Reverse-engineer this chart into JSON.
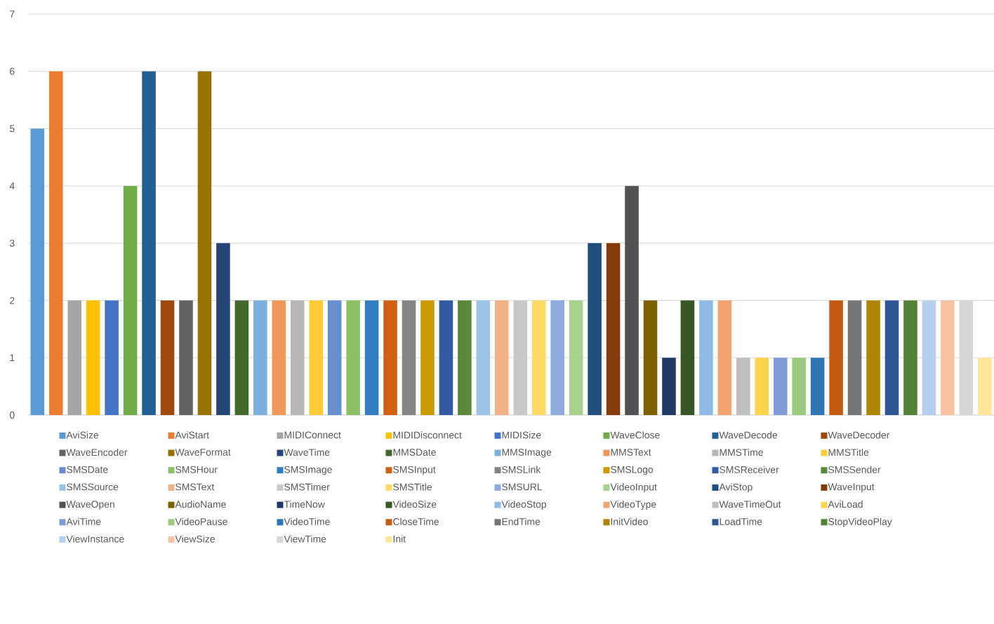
{
  "chart_data": {
    "type": "bar",
    "categories": [
      null
    ],
    "ylim": [
      0,
      7
    ],
    "yticks": [
      0,
      1,
      2,
      3,
      4,
      5,
      6,
      7
    ],
    "grid": "y",
    "legend": "bottom",
    "series": [
      {
        "name": "AviSize",
        "color": "#5b9bd5",
        "values": [
          5
        ]
      },
      {
        "name": "AviStart",
        "color": "#ed7d31",
        "values": [
          6
        ]
      },
      {
        "name": "MIDIConnect",
        "color": "#a5a5a5",
        "values": [
          2
        ]
      },
      {
        "name": "MIDIDisconnect",
        "color": "#ffc000",
        "values": [
          2
        ]
      },
      {
        "name": "MIDISize",
        "color": "#4472c4",
        "values": [
          2
        ]
      },
      {
        "name": "WaveClose",
        "color": "#70ad47",
        "values": [
          4
        ]
      },
      {
        "name": "WaveDecode",
        "color": "#255e91",
        "values": [
          6
        ]
      },
      {
        "name": "WaveDecoder",
        "color": "#9e480e",
        "values": [
          2
        ]
      },
      {
        "name": "WaveEncoder",
        "color": "#636363",
        "values": [
          2
        ]
      },
      {
        "name": "WaveFormat",
        "color": "#997300",
        "values": [
          6
        ]
      },
      {
        "name": "WaveTime",
        "color": "#264478",
        "values": [
          3
        ]
      },
      {
        "name": "MMSDate",
        "color": "#43682b",
        "values": [
          2
        ]
      },
      {
        "name": "MMSImage",
        "color": "#7cafdd",
        "values": [
          2
        ]
      },
      {
        "name": "MMSText",
        "color": "#f1975a",
        "values": [
          2
        ]
      },
      {
        "name": "MMSTime",
        "color": "#b7b7b7",
        "values": [
          2
        ]
      },
      {
        "name": "MMSTitle",
        "color": "#ffcd33",
        "values": [
          2
        ]
      },
      {
        "name": "SMSDate",
        "color": "#698ed0",
        "values": [
          2
        ]
      },
      {
        "name": "SMSHour",
        "color": "#8cc168",
        "values": [
          2
        ]
      },
      {
        "name": "SMSImage",
        "color": "#327dc2",
        "values": [
          2
        ]
      },
      {
        "name": "SMSInput",
        "color": "#d26012",
        "values": [
          2
        ]
      },
      {
        "name": "SMSLink",
        "color": "#848484",
        "values": [
          2
        ]
      },
      {
        "name": "SMSLogo",
        "color": "#cc9a00",
        "values": [
          2
        ]
      },
      {
        "name": "SMSReceiver",
        "color": "#335aa1",
        "values": [
          2
        ]
      },
      {
        "name": "SMSSender",
        "color": "#5a8a39",
        "values": [
          2
        ]
      },
      {
        "name": "SMSSource",
        "color": "#9dc3e6",
        "values": [
          2
        ]
      },
      {
        "name": "SMSText",
        "color": "#f4b183",
        "values": [
          2
        ]
      },
      {
        "name": "SMSTimer",
        "color": "#c9c9c9",
        "values": [
          2
        ]
      },
      {
        "name": "SMSTitle",
        "color": "#ffd966",
        "values": [
          2
        ]
      },
      {
        "name": "SMSURL",
        "color": "#8faadc",
        "values": [
          2
        ]
      },
      {
        "name": "VideoInput",
        "color": "#a9d18e",
        "values": [
          2
        ]
      },
      {
        "name": "AviStop",
        "color": "#1f4e79",
        "values": [
          3
        ]
      },
      {
        "name": "WaveInput",
        "color": "#843c0c",
        "values": [
          3
        ]
      },
      {
        "name": "WaveOpen",
        "color": "#525252",
        "values": [
          4
        ]
      },
      {
        "name": "AudioName",
        "color": "#7f6000",
        "values": [
          2
        ]
      },
      {
        "name": "TimeNow",
        "color": "#203864",
        "values": [
          1
        ]
      },
      {
        "name": "VideoSize",
        "color": "#375623",
        "values": [
          2
        ]
      },
      {
        "name": "VideoStop",
        "color": "#8fbae3",
        "values": [
          2
        ]
      },
      {
        "name": "VideoType",
        "color": "#f3a46f",
        "values": [
          2
        ]
      },
      {
        "name": "WaveTimeOut",
        "color": "#bfbfbf",
        "values": [
          1
        ]
      },
      {
        "name": "AviLoad",
        "color": "#ffd34d",
        "values": [
          1
        ]
      },
      {
        "name": "AviTime",
        "color": "#7e9bd5",
        "values": [
          1
        ]
      },
      {
        "name": "VideoPause",
        "color": "#9bca7e",
        "values": [
          1
        ]
      },
      {
        "name": "VideoTime",
        "color": "#2e75b6",
        "values": [
          1
        ]
      },
      {
        "name": "CloseTime",
        "color": "#c55a11",
        "values": [
          2
        ]
      },
      {
        "name": "EndTime",
        "color": "#767676",
        "values": [
          2
        ]
      },
      {
        "name": "InitVideo",
        "color": "#b08600",
        "values": [
          2
        ]
      },
      {
        "name": "LoadTime",
        "color": "#2f5597",
        "values": [
          2
        ]
      },
      {
        "name": "StopVideoPlay",
        "color": "#548235",
        "values": [
          2
        ]
      },
      {
        "name": "ViewInstance",
        "color": "#b4d0ec",
        "values": [
          2
        ]
      },
      {
        "name": "ViewSize",
        "color": "#f7c2a0",
        "values": [
          2
        ]
      },
      {
        "name": "ViewTime",
        "color": "#d6d6d6",
        "values": [
          2
        ]
      },
      {
        "name": "Init",
        "color": "#ffe699",
        "values": [
          1
        ]
      }
    ]
  }
}
